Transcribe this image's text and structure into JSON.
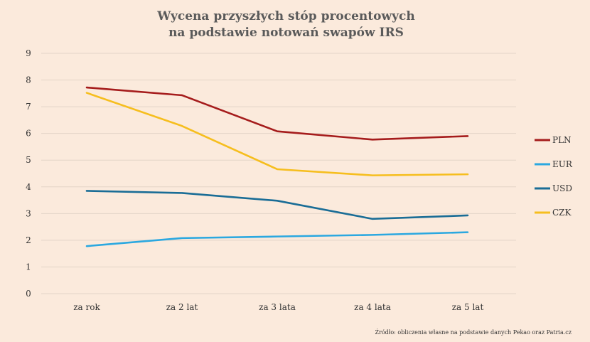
{
  "chart_data": {
    "type": "line",
    "title_lines": [
      "Wycena przyszłych stóp procentowych",
      "na podstawie notowań swapów IRS"
    ],
    "categories": [
      "za rok",
      "za 2 lat",
      "za 3 lata",
      "za 4 lata",
      "za 5 lat"
    ],
    "ylim": [
      0,
      9
    ],
    "yticks": [
      0,
      1,
      2,
      3,
      4,
      5,
      6,
      7,
      8,
      9
    ],
    "grid": true,
    "legend_position": "right",
    "series": [
      {
        "name": "PLN",
        "color": "#a51c1c",
        "values": [
          7.72,
          7.43,
          6.08,
          5.77,
          5.9
        ]
      },
      {
        "name": "EUR",
        "color": "#2ba8e0",
        "values": [
          1.78,
          2.08,
          2.14,
          2.2,
          2.3
        ]
      },
      {
        "name": "USD",
        "color": "#1a6d96",
        "values": [
          3.85,
          3.77,
          3.48,
          2.8,
          2.93
        ]
      },
      {
        "name": "CZK",
        "color": "#f6be1e",
        "values": [
          7.52,
          6.28,
          4.66,
          4.43,
          4.47
        ]
      }
    ],
    "source": "Źródło: obliczenia własne na podstawie danych Pekao oraz Patria.cz"
  }
}
